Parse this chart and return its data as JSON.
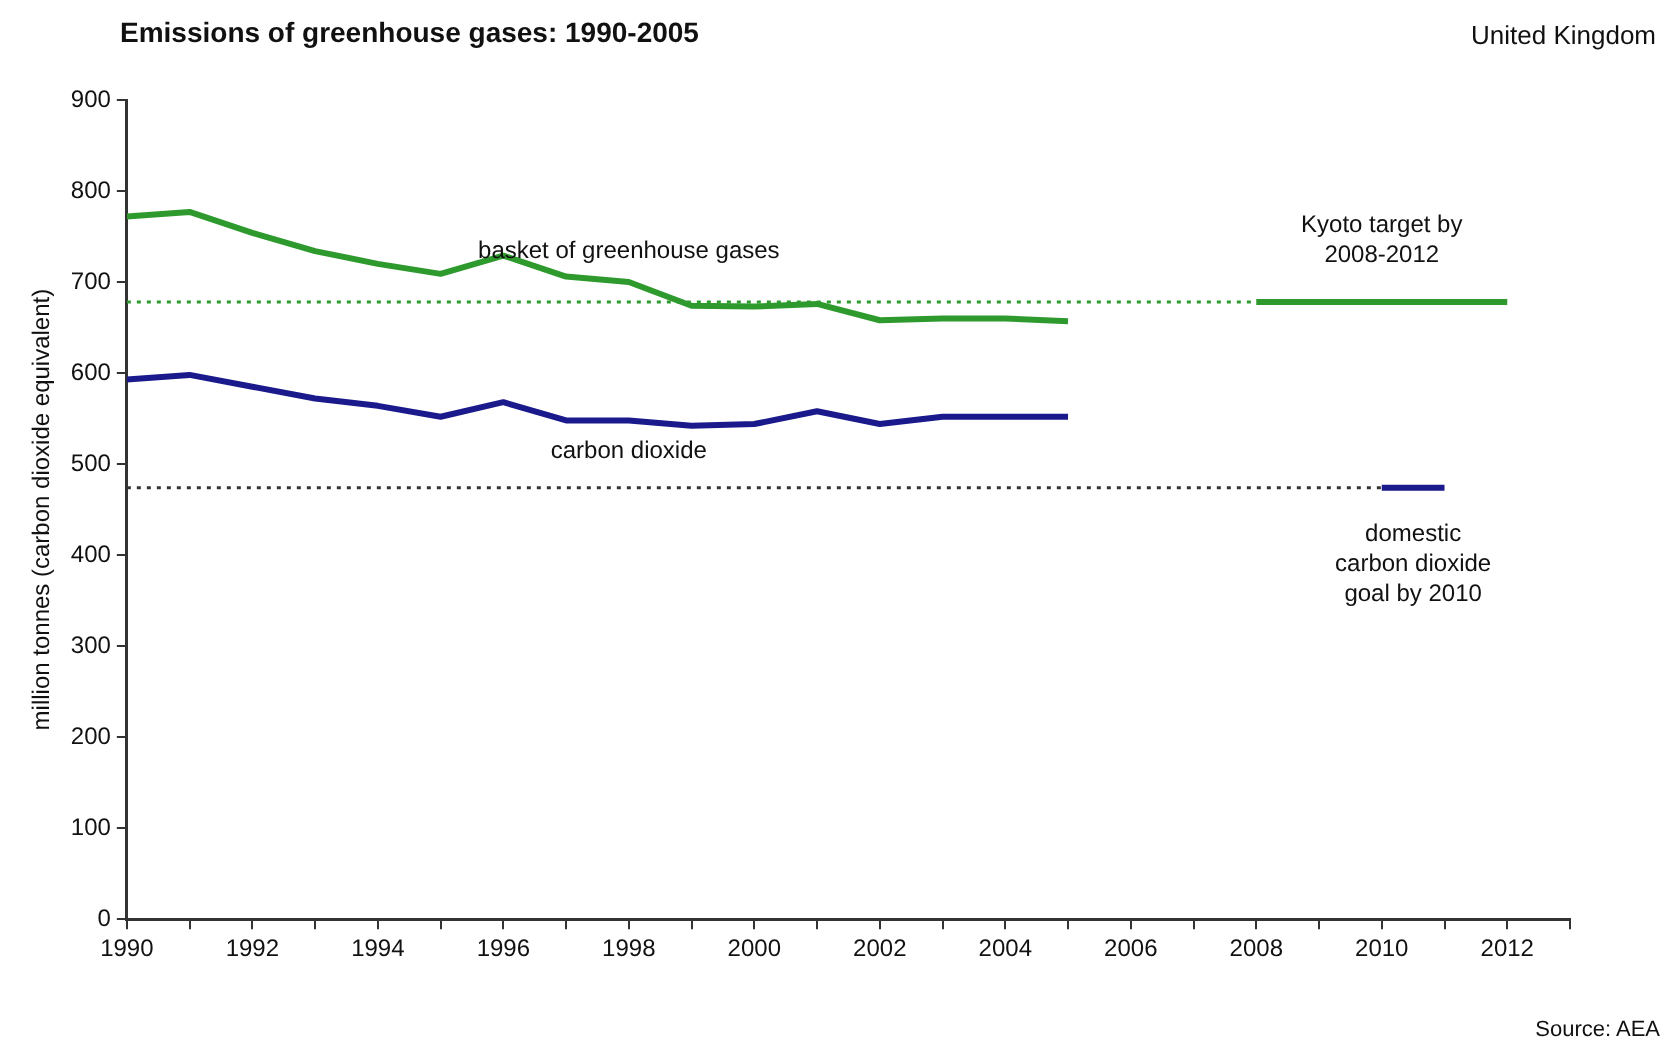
{
  "chart_data": {
    "type": "line",
    "title": "Emissions of greenhouse gases: 1990-2005",
    "subtitle": "United Kingdom",
    "ylabel": "million tonnes (carbon dioxide equivalent)",
    "xlim": [
      1990,
      2013
    ],
    "xticks": [
      1990,
      {
        "value": 1991,
        "label": null
      },
      1992,
      {
        "value": 1993,
        "label": null
      },
      1994,
      {
        "value": 1995,
        "label": null
      },
      1996,
      {
        "value": 1997,
        "label": null
      },
      1998,
      {
        "value": 1999,
        "label": null
      },
      2000,
      {
        "value": 2001,
        "label": null
      },
      2002,
      {
        "value": 2003,
        "label": null
      },
      2004,
      {
        "value": 2005,
        "label": null
      },
      2006,
      {
        "value": 2007,
        "label": null
      },
      2008,
      {
        "value": 2009,
        "label": null
      },
      2010,
      {
        "value": 2011,
        "label": null
      },
      2012,
      {
        "value": 2013,
        "label": null
      }
    ],
    "ylim": [
      0,
      900
    ],
    "yticks": [
      0,
      100,
      200,
      300,
      400,
      500,
      600,
      700,
      800,
      900
    ],
    "grid": false,
    "legend": false,
    "marker": "none",
    "series": [
      {
        "name": "basket of greenhouse gases",
        "color": "#2e9a2e",
        "x": [
          1990,
          1991,
          1992,
          1993,
          1994,
          1995,
          1996,
          1997,
          1998,
          1999,
          2000,
          2001,
          2002,
          2003,
          2004,
          2005
        ],
        "values": [
          772,
          777,
          754,
          734,
          720,
          709,
          729,
          706,
          700,
          674,
          673,
          676,
          658,
          660,
          660,
          657
        ]
      },
      {
        "name": "carbon dioxide",
        "color": "#1a1a8c",
        "x": [
          1990,
          1991,
          1992,
          1993,
          1994,
          1995,
          1996,
          1997,
          1998,
          1999,
          2000,
          2001,
          2002,
          2003,
          2004,
          2005
        ],
        "values": [
          593,
          598,
          585,
          572,
          564,
          552,
          568,
          548,
          548,
          542,
          544,
          558,
          544,
          552,
          552,
          552
        ]
      },
      {
        "color": "#2e9a2e",
        "line_style": "dotted",
        "x": [
          1990,
          2008
        ],
        "values": [
          678,
          678
        ]
      },
      {
        "name": "Kyoto target by 2008-2012",
        "color": "#2e9a2e",
        "x": [
          2008,
          2012
        ],
        "values": [
          678,
          678
        ]
      },
      {
        "color": "#333333",
        "line_style": "dotted",
        "x": [
          1990,
          2010
        ],
        "values": [
          474,
          474
        ]
      },
      {
        "name": "domestic carbon dioxide goal by 2010",
        "color": "#1a1a8c",
        "x": [
          2010,
          2011
        ],
        "values": [
          474,
          474
        ]
      }
    ],
    "annotations": [
      "Source: AEA"
    ]
  }
}
